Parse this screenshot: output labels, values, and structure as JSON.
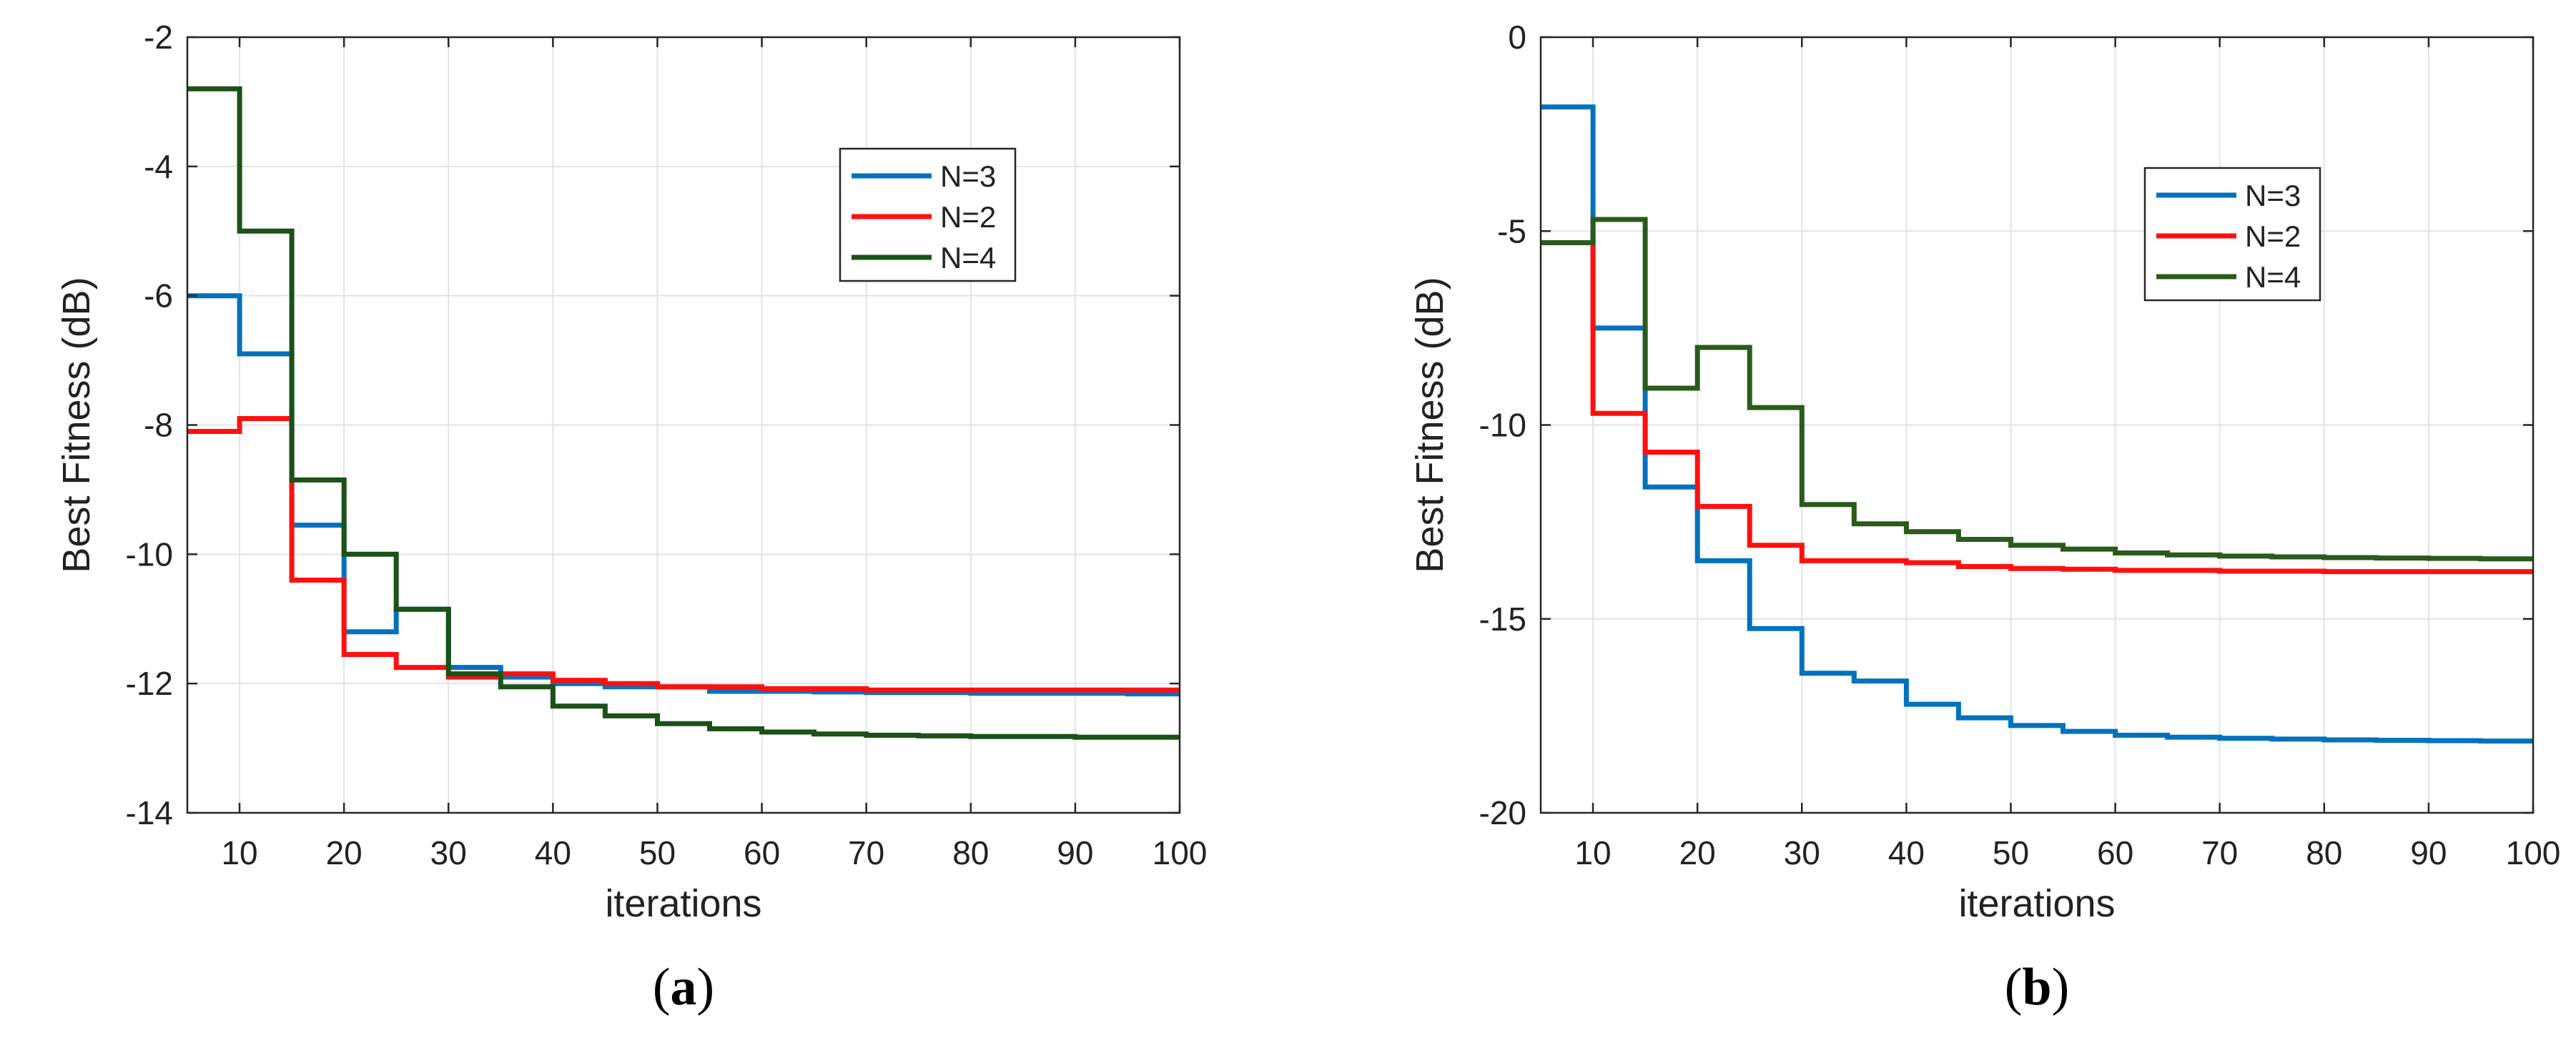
{
  "chart_data": [
    {
      "type": "line",
      "panel_label": "a",
      "title": "",
      "xlabel": "iterations",
      "ylabel": "Best Fitness (dB)",
      "xlim": [
        5,
        100
      ],
      "ylim": [
        -14,
        -2
      ],
      "xticks": [
        10,
        20,
        30,
        40,
        50,
        60,
        70,
        80,
        90,
        100
      ],
      "yticks": [
        -2,
        -4,
        -6,
        -8,
        -10,
        -12,
        -14
      ],
      "grid": true,
      "legend_position": "top-right",
      "x": [
        5,
        10,
        15,
        20,
        25,
        30,
        35,
        40,
        45,
        50,
        55,
        60,
        65,
        70,
        75,
        80,
        85,
        90,
        95,
        100
      ],
      "series": [
        {
          "name": "N=3",
          "color": "#0072BD",
          "values": [
            -6.0,
            -6.9,
            -9.55,
            -11.2,
            -10.85,
            -11.75,
            -11.9,
            -12.0,
            -12.05,
            -12.05,
            -12.12,
            -12.12,
            -12.13,
            -12.14,
            -12.14,
            -12.15,
            -12.15,
            -12.15,
            -12.16,
            -12.16
          ]
        },
        {
          "name": "N=2",
          "color": "#FF1010",
          "values": [
            -8.1,
            -7.9,
            -10.4,
            -11.55,
            -11.75,
            -11.9,
            -11.85,
            -11.95,
            -12.0,
            -12.05,
            -12.05,
            -12.08,
            -12.08,
            -12.1,
            -12.1,
            -12.1,
            -12.1,
            -12.1,
            -12.1,
            -12.1
          ]
        },
        {
          "name": "N=4",
          "color": "#1A5218",
          "values": [
            -2.8,
            -5.0,
            -8.85,
            -10.0,
            -10.85,
            -11.85,
            -12.05,
            -12.35,
            -12.5,
            -12.62,
            -12.7,
            -12.75,
            -12.78,
            -12.8,
            -12.81,
            -12.82,
            -12.82,
            -12.83,
            -12.83,
            -12.83
          ]
        }
      ]
    },
    {
      "type": "line",
      "panel_label": "b",
      "title": "",
      "xlabel": "iterations",
      "ylabel": "Best Fitness (dB)",
      "xlim": [
        5,
        100
      ],
      "ylim": [
        -20,
        0
      ],
      "xticks": [
        10,
        20,
        30,
        40,
        50,
        60,
        70,
        80,
        90,
        100
      ],
      "yticks": [
        0,
        -5,
        -10,
        -15,
        -20
      ],
      "grid": true,
      "legend_position": "top-right",
      "x": [
        5,
        10,
        15,
        20,
        25,
        30,
        35,
        40,
        45,
        50,
        55,
        60,
        65,
        70,
        75,
        80,
        85,
        90,
        95,
        100
      ],
      "series": [
        {
          "name": "N=3",
          "color": "#0072BD",
          "values": [
            -1.8,
            -7.5,
            -11.6,
            -13.5,
            -15.25,
            -16.4,
            -16.6,
            -17.2,
            -17.55,
            -17.75,
            -17.9,
            -18.0,
            -18.05,
            -18.08,
            -18.1,
            -18.12,
            -18.13,
            -18.14,
            -18.15,
            -18.15
          ]
        },
        {
          "name": "N=2",
          "color": "#FF1010",
          "values": [
            -5.3,
            -9.7,
            -10.7,
            -12.1,
            -13.1,
            -13.5,
            -13.5,
            -13.55,
            -13.65,
            -13.7,
            -13.72,
            -13.75,
            -13.75,
            -13.77,
            -13.77,
            -13.78,
            -13.78,
            -13.78,
            -13.78,
            -13.78
          ]
        },
        {
          "name": "N=4",
          "color": "#2A5A1C",
          "values": [
            -5.3,
            -4.7,
            -9.05,
            -8.0,
            -9.55,
            -12.05,
            -12.55,
            -12.75,
            -12.95,
            -13.1,
            -13.2,
            -13.3,
            -13.35,
            -13.38,
            -13.4,
            -13.42,
            -13.43,
            -13.44,
            -13.45,
            -13.45
          ]
        }
      ]
    }
  ]
}
